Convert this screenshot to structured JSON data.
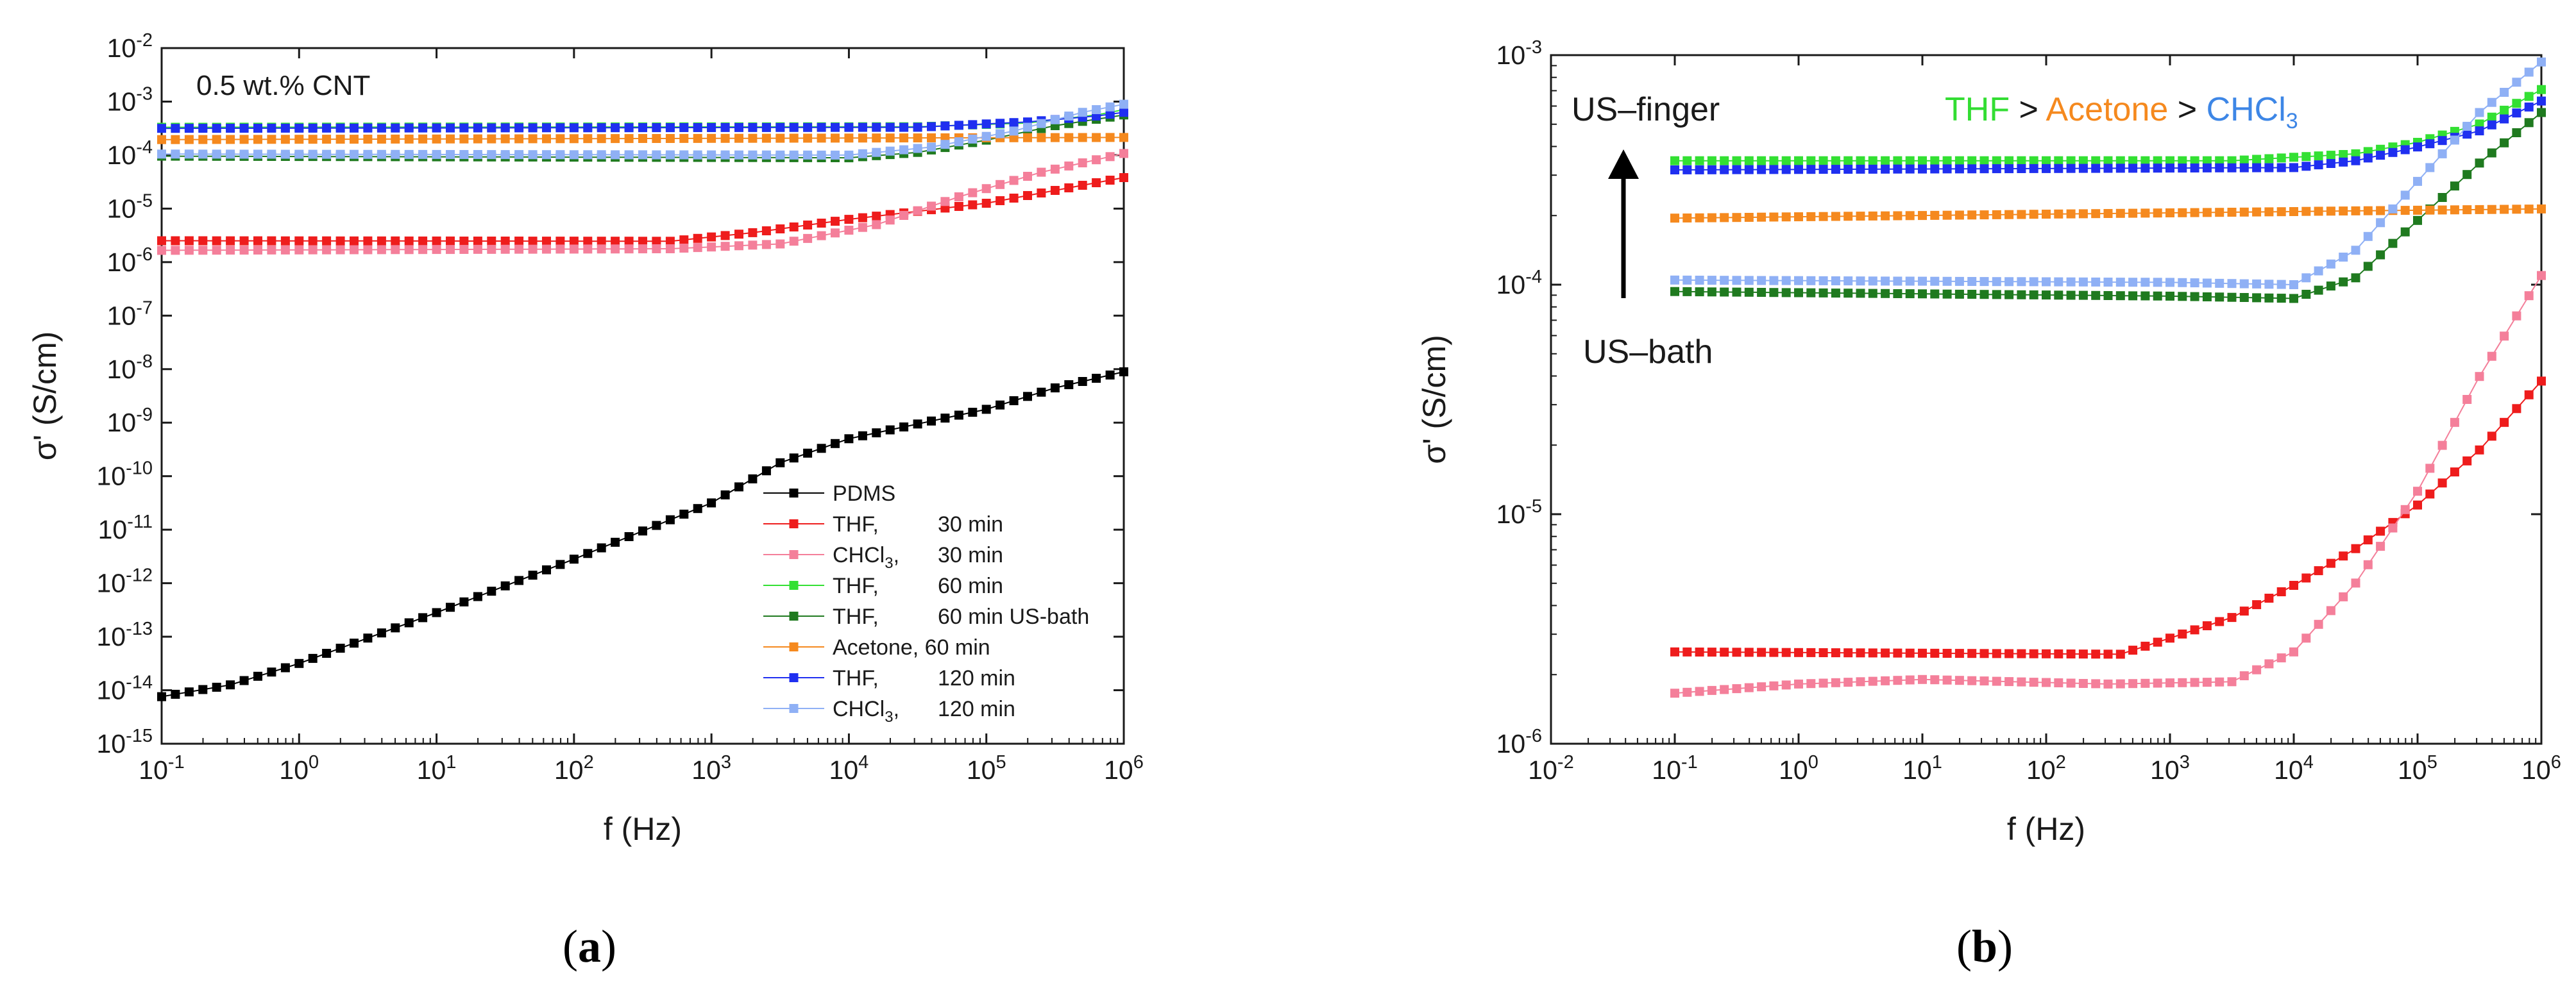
{
  "chart_data": [
    {
      "type": "scatter",
      "panel_label": "a",
      "title": "",
      "annotation": "0.5 wt.% CNT",
      "xlabel": "f (Hz)",
      "ylabel": "σ' (S/cm)",
      "xscale": "log",
      "yscale": "log",
      "xlim": [
        0.1,
        1000000
      ],
      "ylim": [
        1e-15,
        0.01
      ],
      "x_ticks": [
        {
          "base": "10",
          "exp": "-1"
        },
        {
          "base": "10",
          "exp": "0"
        },
        {
          "base": "10",
          "exp": "1"
        },
        {
          "base": "10",
          "exp": "2"
        },
        {
          "base": "10",
          "exp": "3"
        },
        {
          "base": "10",
          "exp": "4"
        },
        {
          "base": "10",
          "exp": "5"
        },
        {
          "base": "10",
          "exp": "6"
        }
      ],
      "y_ticks": [
        {
          "base": "10",
          "exp": "-15"
        },
        {
          "base": "10",
          "exp": "-14"
        },
        {
          "base": "10",
          "exp": "-13"
        },
        {
          "base": "10",
          "exp": "-12"
        },
        {
          "base": "10",
          "exp": "-11"
        },
        {
          "base": "10",
          "exp": "-10"
        },
        {
          "base": "10",
          "exp": "-9"
        },
        {
          "base": "10",
          "exp": "-8"
        },
        {
          "base": "10",
          "exp": "-7"
        },
        {
          "base": "10",
          "exp": "-6"
        },
        {
          "base": "10",
          "exp": "-5"
        },
        {
          "base": "10",
          "exp": "-4"
        },
        {
          "base": "10",
          "exp": "-3"
        },
        {
          "base": "10",
          "exp": "-2"
        }
      ],
      "legend_position": "bottom-right",
      "series": [
        {
          "name": "PDMS",
          "legend_parts": [
            "PDMS"
          ],
          "color": "#000000",
          "keypoints": [
            [
              -1,
              -14.12
            ],
            [
              -0.5,
              -13.9
            ],
            [
              0,
              -13.5
            ],
            [
              1,
              -12.55
            ],
            [
              2,
              -11.55
            ],
            [
              3,
              -10.5
            ],
            [
              3.5,
              -9.75
            ],
            [
              4,
              -9.3
            ],
            [
              5,
              -8.75
            ],
            [
              5.5,
              -8.35
            ],
            [
              6,
              -8.05
            ]
          ]
        },
        {
          "name": "THF, 30 min",
          "legend_parts": [
            "THF,",
            "30 min"
          ],
          "color": "#ee1c1c",
          "keypoints": [
            [
              -1,
              -5.6
            ],
            [
              2.7,
              -5.61
            ],
            [
              3.3,
              -5.45
            ],
            [
              4,
              -5.2
            ],
            [
              5,
              -4.9
            ],
            [
              6,
              -4.42
            ]
          ]
        },
        {
          "name": "CHCl3, 30 min",
          "legend_parts": [
            "CHCl",
            "3",
            ",",
            "30 min"
          ],
          "color": "#f47f9a",
          "keypoints": [
            [
              -1,
              -5.78
            ],
            [
              2.7,
              -5.75
            ],
            [
              3.5,
              -5.66
            ],
            [
              4.2,
              -5.3
            ],
            [
              4.8,
              -4.78
            ],
            [
              5.4,
              -4.32
            ],
            [
              6,
              -3.97
            ]
          ]
        },
        {
          "name": "THF, 60 min",
          "legend_parts": [
            "THF,",
            "60 min"
          ],
          "color": "#33e033",
          "keypoints": [
            [
              -1,
              -3.48
            ],
            [
              4.5,
              -3.47
            ],
            [
              5.3,
              -3.4
            ],
            [
              5.8,
              -3.25
            ],
            [
              6,
              -3.15
            ]
          ]
        },
        {
          "name": "THF, 60 min US-bath",
          "legend_parts": [
            "THF,",
            "60 min US-bath"
          ],
          "color": "#1f7a1f",
          "keypoints": [
            [
              -1,
              -4.02
            ],
            [
              4,
              -4.05
            ],
            [
              4.5,
              -3.95
            ],
            [
              5,
              -3.72
            ],
            [
              5.5,
              -3.45
            ],
            [
              6,
              -3.25
            ]
          ]
        },
        {
          "name": "Acetone, 60 min",
          "legend_parts": [
            "Acetone, 60 min"
          ],
          "color": "#f5891e",
          "keypoints": [
            [
              -1,
              -3.71
            ],
            [
              6,
              -3.67
            ]
          ]
        },
        {
          "name": "THF, 120 min",
          "legend_parts": [
            "THF,",
            "120 min"
          ],
          "color": "#1f2ff0",
          "keypoints": [
            [
              -1,
              -3.5
            ],
            [
              4.5,
              -3.48
            ],
            [
              5.3,
              -3.38
            ],
            [
              5.8,
              -3.27
            ],
            [
              6,
              -3.2
            ]
          ]
        },
        {
          "name": "CHCl3, 120 min",
          "legend_parts": [
            "CHCl",
            "3",
            ",",
            "120 min"
          ],
          "color": "#8fb0f5",
          "keypoints": [
            [
              -1,
              -3.98
            ],
            [
              4,
              -4
            ],
            [
              4.6,
              -3.85
            ],
            [
              5.2,
              -3.55
            ],
            [
              5.7,
              -3.2
            ],
            [
              6,
              -3.05
            ]
          ]
        }
      ]
    },
    {
      "type": "scatter",
      "panel_label": "b",
      "title": "",
      "xlabel": "f (Hz)",
      "ylabel": "σ' (S/cm)",
      "xscale": "log",
      "yscale": "log",
      "xlim": [
        0.01,
        1000000
      ],
      "ylim": [
        1e-06,
        0.001
      ],
      "x_ticks": [
        {
          "base": "10",
          "exp": "-2"
        },
        {
          "base": "10",
          "exp": "-1"
        },
        {
          "base": "10",
          "exp": "0"
        },
        {
          "base": "10",
          "exp": "1"
        },
        {
          "base": "10",
          "exp": "2"
        },
        {
          "base": "10",
          "exp": "3"
        },
        {
          "base": "10",
          "exp": "4"
        },
        {
          "base": "10",
          "exp": "5"
        },
        {
          "base": "10",
          "exp": "6"
        }
      ],
      "y_ticks": [
        {
          "base": "10",
          "exp": "-6"
        },
        {
          "base": "10",
          "exp": "-5"
        },
        {
          "base": "10",
          "exp": "-4"
        },
        {
          "base": "10",
          "exp": "-3"
        }
      ],
      "annotations": {
        "top_label": "US–finger",
        "bottom_label": "US–bath",
        "ranking": [
          {
            "text": "THF",
            "color": "#33dd33"
          },
          {
            "text": " > ",
            "color": "#1a1a1a"
          },
          {
            "text": "Acetone",
            "color": "#f5891e"
          },
          {
            "text": " > ",
            "color": "#1a1a1a"
          },
          {
            "text": "CHCl",
            "color": "#3d86e6"
          }
        ],
        "ranking_subscript": "3"
      },
      "series": [
        {
          "name": "THF, 30 min",
          "color": "#ee1c1c",
          "keypoints": [
            [
              -1,
              -5.6
            ],
            [
              2.6,
              -5.61
            ],
            [
              3,
              -5.54
            ],
            [
              3.5,
              -5.45
            ],
            [
              4,
              -5.31
            ],
            [
              4.5,
              -5.15
            ],
            [
              5,
              -4.96
            ],
            [
              5.5,
              -4.72
            ],
            [
              6,
              -4.42
            ]
          ]
        },
        {
          "name": "CHCl3, 30 min",
          "color": "#f47f9a",
          "keypoints": [
            [
              -1,
              -5.78
            ],
            [
              0,
              -5.74
            ],
            [
              1,
              -5.72
            ],
            [
              2.5,
              -5.74
            ],
            [
              3.5,
              -5.73
            ],
            [
              4,
              -5.6
            ],
            [
              4.5,
              -5.3
            ],
            [
              5,
              -4.9
            ],
            [
              5.5,
              -4.4
            ],
            [
              6,
              -3.96
            ]
          ]
        },
        {
          "name": "THF, 60 min",
          "color": "#33e033",
          "keypoints": [
            [
              -1,
              -3.46
            ],
            [
              3.5,
              -3.46
            ],
            [
              4.5,
              -3.43
            ],
            [
              5,
              -3.38
            ],
            [
              5.5,
              -3.3
            ],
            [
              6,
              -3.15
            ]
          ]
        },
        {
          "name": "THF, 60 min US-bath",
          "color": "#1f7a1f",
          "keypoints": [
            [
              -1,
              -4.03
            ],
            [
              3,
              -4.05
            ],
            [
              4,
              -4.06
            ],
            [
              4.5,
              -3.97
            ],
            [
              5,
              -3.72
            ],
            [
              5.5,
              -3.47
            ],
            [
              6,
              -3.25
            ]
          ]
        },
        {
          "name": "Acetone, 60 min",
          "color": "#f5891e",
          "keypoints": [
            [
              -1,
              -3.71
            ],
            [
              6,
              -3.67
            ]
          ]
        },
        {
          "name": "THF, 120 min",
          "color": "#1f2ff0",
          "keypoints": [
            [
              -1,
              -3.5
            ],
            [
              4,
              -3.49
            ],
            [
              4.5,
              -3.46
            ],
            [
              5,
              -3.4
            ],
            [
              5.5,
              -3.33
            ],
            [
              6,
              -3.2
            ]
          ]
        },
        {
          "name": "CHCl3, 120 min",
          "color": "#8fb0f5",
          "keypoints": [
            [
              -1,
              -3.98
            ],
            [
              3,
              -3.99
            ],
            [
              4,
              -4.0
            ],
            [
              4.5,
              -3.85
            ],
            [
              5,
              -3.55
            ],
            [
              5.5,
              -3.25
            ],
            [
              6,
              -3.03
            ]
          ]
        }
      ]
    }
  ]
}
